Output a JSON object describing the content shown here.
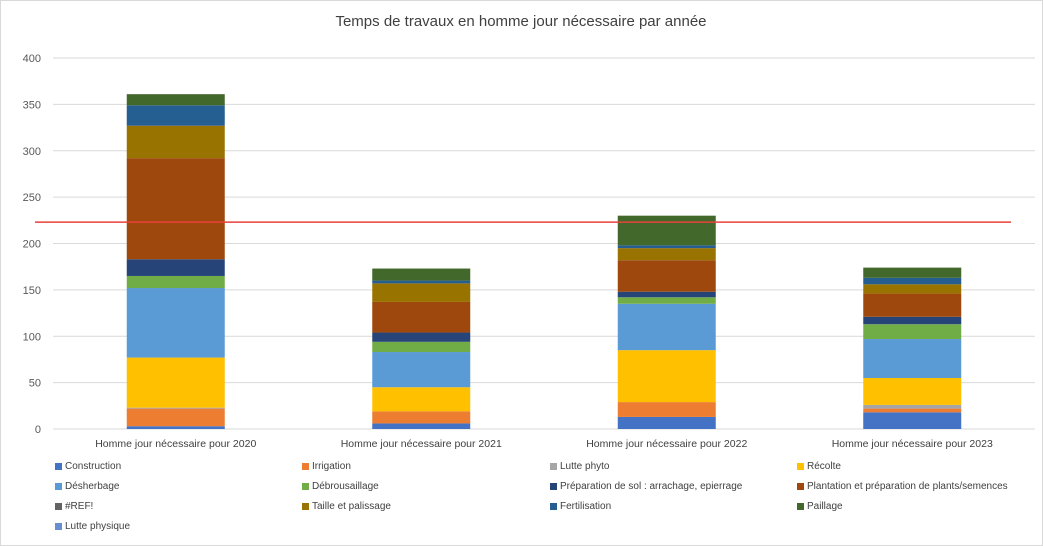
{
  "chart_data": {
    "type": "bar",
    "stacked": true,
    "title": "Temps de travaux en homme jour nécessaire par année",
    "xlabel": "",
    "ylabel": "",
    "ylim": [
      0,
      400
    ],
    "yticks": [
      0,
      50,
      100,
      150,
      200,
      250,
      300,
      350,
      400
    ],
    "gridlines": true,
    "reference_line": {
      "value": 223,
      "color": "#e8413b"
    },
    "categories": [
      "Homme jour nécessaire pour 2020",
      "Homme jour nécessaire pour 2021",
      "Homme jour nécessaire pour 2022",
      "Homme jour nécessaire pour 2023"
    ],
    "series": [
      {
        "name": "Construction",
        "color": "#4472c4",
        "values": [
          3,
          6,
          13,
          18
        ]
      },
      {
        "name": "Irrigation",
        "color": "#ed7d31",
        "values": [
          19,
          13,
          16,
          4
        ]
      },
      {
        "name": "Lutte phyto",
        "color": "#a5a5a5",
        "values": [
          1,
          0,
          0,
          4
        ]
      },
      {
        "name": "Récolte",
        "color": "#ffc000",
        "values": [
          54,
          26,
          56,
          29
        ]
      },
      {
        "name": "Désherbage",
        "color": "#5b9bd5",
        "values": [
          75,
          38,
          50,
          42
        ]
      },
      {
        "name": "Débrousaillage",
        "color": "#70ad47",
        "values": [
          13,
          11,
          7,
          16
        ]
      },
      {
        "name": "Préparation de sol : arrachage, epierrage",
        "color": "#264478",
        "values": [
          18,
          10,
          6,
          8
        ]
      },
      {
        "name": "Plantation et préparation de plants/semences",
        "color": "#9e480e",
        "values": [
          109,
          33,
          34,
          25
        ]
      },
      {
        "name": "#REF!",
        "color": "#636363",
        "values": [
          0,
          0,
          0,
          0
        ]
      },
      {
        "name": "Taille et palissage",
        "color": "#997300",
        "values": [
          35,
          20,
          13,
          10
        ]
      },
      {
        "name": "Fertilisation",
        "color": "#255e91",
        "values": [
          22,
          3,
          3,
          7
        ]
      },
      {
        "name": "Paillage",
        "color": "#43682b",
        "values": [
          12,
          13,
          32,
          11
        ]
      },
      {
        "name": "Lutte physique",
        "color": "#698ed0",
        "values": [
          0,
          0,
          0,
          0
        ]
      }
    ]
  }
}
